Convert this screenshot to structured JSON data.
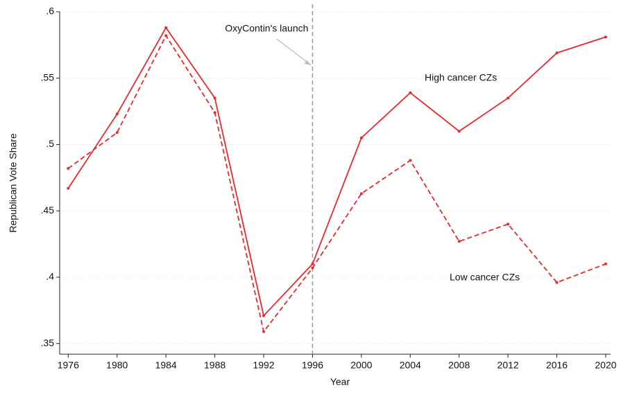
{
  "chart_data": {
    "type": "line",
    "x_label": "Year",
    "y_label": "Republican Vote Share",
    "x": [
      1976,
      1980,
      1984,
      1988,
      1992,
      1996,
      2000,
      2004,
      2008,
      2012,
      2016,
      2020
    ],
    "series": [
      {
        "name": "High cancer CZs",
        "color": "#e8282b",
        "dash": "solid",
        "values": [
          0.467,
          0.523,
          0.588,
          0.535,
          0.371,
          0.41,
          0.505,
          0.539,
          0.51,
          0.535,
          0.569,
          0.581
        ]
      },
      {
        "name": "Low cancer  CZs",
        "color": "#e8282b",
        "dash": "dashed",
        "values": [
          0.482,
          0.509,
          0.582,
          0.524,
          0.359,
          0.407,
          0.463,
          0.488,
          0.427,
          0.44,
          0.396,
          0.41
        ]
      }
    ],
    "xlim": [
      1975.3,
      2020.4
    ],
    "xticks": [
      1976,
      1980,
      1984,
      1988,
      1992,
      1996,
      2000,
      2004,
      2008,
      2012,
      2016,
      2020
    ],
    "ylim": [
      0.342,
      0.6
    ],
    "yticks": [
      {
        "value": 0.35,
        "label": ".35"
      },
      {
        "value": 0.4,
        "label": ".4"
      },
      {
        "value": 0.45,
        "label": ".45"
      },
      {
        "value": 0.5,
        "label": ".5"
      },
      {
        "value": 0.55,
        "label": ".55"
      },
      {
        "value": 0.6,
        "label": ".6"
      }
    ],
    "grid": true,
    "annotation": {
      "text": "OxyContin's launch",
      "x": 1996
    }
  }
}
